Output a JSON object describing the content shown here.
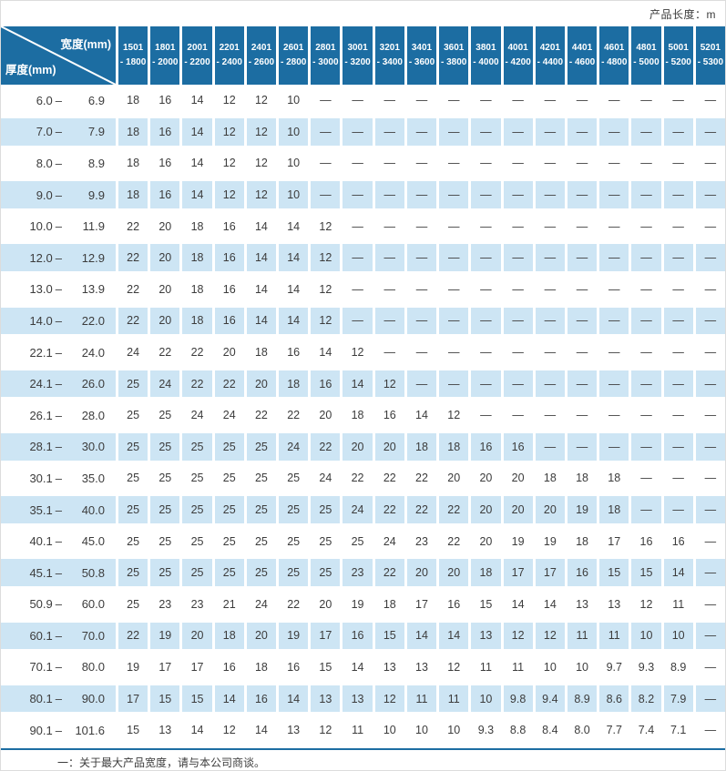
{
  "page": {
    "unit_label": "产品长度：m",
    "footnote": "一：关于最大产品宽度，请与本公司商谈。"
  },
  "colors": {
    "header_blue": "#1c6da2",
    "row_alt_blue": "#cde5f4",
    "text": "#3c3c3c"
  },
  "table": {
    "corner": {
      "top_right": "宽度(mm)",
      "bottom_left": "厚度(mm)"
    },
    "label_separator": "–",
    "columns": [
      {
        "line1": "1501",
        "line2": "- 1800"
      },
      {
        "line1": "1801",
        "line2": "- 2000"
      },
      {
        "line1": "2001",
        "line2": "- 2200"
      },
      {
        "line1": "2201",
        "line2": "- 2400"
      },
      {
        "line1": "2401",
        "line2": "- 2600"
      },
      {
        "line1": "2601",
        "line2": "- 2800"
      },
      {
        "line1": "2801",
        "line2": "- 3000"
      },
      {
        "line1": "3001",
        "line2": "- 3200"
      },
      {
        "line1": "3201",
        "line2": "- 3400"
      },
      {
        "line1": "3401",
        "line2": "- 3600"
      },
      {
        "line1": "3601",
        "line2": "- 3800"
      },
      {
        "line1": "3801",
        "line2": "- 4000"
      },
      {
        "line1": "4001",
        "line2": "- 4200"
      },
      {
        "line1": "4201",
        "line2": "- 4400"
      },
      {
        "line1": "4401",
        "line2": "- 4600"
      },
      {
        "line1": "4601",
        "line2": "- 4800"
      },
      {
        "line1": "4801",
        "line2": "- 5000"
      },
      {
        "line1": "5001",
        "line2": "- 5200"
      },
      {
        "line1": "5201",
        "line2": "- 5300"
      }
    ],
    "rows": [
      {
        "from": "6.0",
        "to": "6.9",
        "values": [
          "18",
          "16",
          "14",
          "12",
          "12",
          "10",
          "—",
          "—",
          "—",
          "—",
          "—",
          "—",
          "—",
          "—",
          "—",
          "—",
          "—",
          "—",
          "—"
        ]
      },
      {
        "from": "7.0",
        "to": "7.9",
        "values": [
          "18",
          "16",
          "14",
          "12",
          "12",
          "10",
          "—",
          "—",
          "—",
          "—",
          "—",
          "—",
          "—",
          "—",
          "—",
          "—",
          "—",
          "—",
          "—"
        ]
      },
      {
        "from": "8.0",
        "to": "8.9",
        "values": [
          "18",
          "16",
          "14",
          "12",
          "12",
          "10",
          "—",
          "—",
          "—",
          "—",
          "—",
          "—",
          "—",
          "—",
          "—",
          "—",
          "—",
          "—",
          "—"
        ]
      },
      {
        "from": "9.0",
        "to": "9.9",
        "values": [
          "18",
          "16",
          "14",
          "12",
          "12",
          "10",
          "—",
          "—",
          "—",
          "—",
          "—",
          "—",
          "—",
          "—",
          "—",
          "—",
          "—",
          "—",
          "—"
        ]
      },
      {
        "from": "10.0",
        "to": "11.9",
        "values": [
          "22",
          "20",
          "18",
          "16",
          "14",
          "14",
          "12",
          "—",
          "—",
          "—",
          "—",
          "—",
          "—",
          "—",
          "—",
          "—",
          "—",
          "—",
          "—"
        ]
      },
      {
        "from": "12.0",
        "to": "12.9",
        "values": [
          "22",
          "20",
          "18",
          "16",
          "14",
          "14",
          "12",
          "—",
          "—",
          "—",
          "—",
          "—",
          "—",
          "—",
          "—",
          "—",
          "—",
          "—",
          "—"
        ]
      },
      {
        "from": "13.0",
        "to": "13.9",
        "values": [
          "22",
          "20",
          "18",
          "16",
          "14",
          "14",
          "12",
          "—",
          "—",
          "—",
          "—",
          "—",
          "—",
          "—",
          "—",
          "—",
          "—",
          "—",
          "—"
        ]
      },
      {
        "from": "14.0",
        "to": "22.0",
        "values": [
          "22",
          "20",
          "18",
          "16",
          "14",
          "14",
          "12",
          "—",
          "—",
          "—",
          "—",
          "—",
          "—",
          "—",
          "—",
          "—",
          "—",
          "—",
          "—"
        ]
      },
      {
        "from": "22.1",
        "to": "24.0",
        "values": [
          "24",
          "22",
          "22",
          "20",
          "18",
          "16",
          "14",
          "12",
          "—",
          "—",
          "—",
          "—",
          "—",
          "—",
          "—",
          "—",
          "—",
          "—",
          "—"
        ]
      },
      {
        "from": "24.1",
        "to": "26.0",
        "values": [
          "25",
          "24",
          "22",
          "22",
          "20",
          "18",
          "16",
          "14",
          "12",
          "—",
          "—",
          "—",
          "—",
          "—",
          "—",
          "—",
          "—",
          "—",
          "—"
        ]
      },
      {
        "from": "26.1",
        "to": "28.0",
        "values": [
          "25",
          "25",
          "24",
          "24",
          "22",
          "22",
          "20",
          "18",
          "16",
          "14",
          "12",
          "—",
          "—",
          "—",
          "—",
          "—",
          "—",
          "—",
          "—"
        ]
      },
      {
        "from": "28.1",
        "to": "30.0",
        "values": [
          "25",
          "25",
          "25",
          "25",
          "25",
          "24",
          "22",
          "20",
          "20",
          "18",
          "18",
          "16",
          "16",
          "—",
          "—",
          "—",
          "—",
          "—",
          "—"
        ]
      },
      {
        "from": "30.1",
        "to": "35.0",
        "values": [
          "25",
          "25",
          "25",
          "25",
          "25",
          "25",
          "24",
          "22",
          "22",
          "22",
          "20",
          "20",
          "20",
          "18",
          "18",
          "18",
          "—",
          "—",
          "—"
        ]
      },
      {
        "from": "35.1",
        "to": "40.0",
        "values": [
          "25",
          "25",
          "25",
          "25",
          "25",
          "25",
          "25",
          "24",
          "22",
          "22",
          "22",
          "20",
          "20",
          "20",
          "19",
          "18",
          "—",
          "—",
          "—"
        ]
      },
      {
        "from": "40.1",
        "to": "45.0",
        "values": [
          "25",
          "25",
          "25",
          "25",
          "25",
          "25",
          "25",
          "25",
          "24",
          "23",
          "22",
          "20",
          "19",
          "19",
          "18",
          "17",
          "16",
          "16",
          "—"
        ]
      },
      {
        "from": "45.1",
        "to": "50.8",
        "values": [
          "25",
          "25",
          "25",
          "25",
          "25",
          "25",
          "25",
          "23",
          "22",
          "20",
          "20",
          "18",
          "17",
          "17",
          "16",
          "15",
          "15",
          "14",
          "—"
        ]
      },
      {
        "from": "50.9",
        "to": "60.0",
        "values": [
          "25",
          "23",
          "23",
          "21",
          "24",
          "22",
          "20",
          "19",
          "18",
          "17",
          "16",
          "15",
          "14",
          "14",
          "13",
          "13",
          "12",
          "11",
          "—"
        ]
      },
      {
        "from": "60.1",
        "to": "70.0",
        "values": [
          "22",
          "19",
          "20",
          "18",
          "20",
          "19",
          "17",
          "16",
          "15",
          "14",
          "14",
          "13",
          "12",
          "12",
          "11",
          "11",
          "10",
          "10",
          "—"
        ]
      },
      {
        "from": "70.1",
        "to": "80.0",
        "values": [
          "19",
          "17",
          "17",
          "16",
          "18",
          "16",
          "15",
          "14",
          "13",
          "13",
          "12",
          "11",
          "11",
          "10",
          "10",
          "9.7",
          "9.3",
          "8.9",
          "—"
        ]
      },
      {
        "from": "80.1",
        "to": "90.0",
        "values": [
          "17",
          "15",
          "15",
          "14",
          "16",
          "14",
          "13",
          "13",
          "12",
          "11",
          "11",
          "10",
          "9.8",
          "9.4",
          "8.9",
          "8.6",
          "8.2",
          "7.9",
          "—"
        ]
      },
      {
        "from": "90.1",
        "to": "101.6",
        "values": [
          "15",
          "13",
          "14",
          "12",
          "14",
          "13",
          "12",
          "11",
          "10",
          "10",
          "10",
          "9.3",
          "8.8",
          "8.4",
          "8.0",
          "7.7",
          "7.4",
          "7.1",
          "—"
        ]
      }
    ]
  }
}
